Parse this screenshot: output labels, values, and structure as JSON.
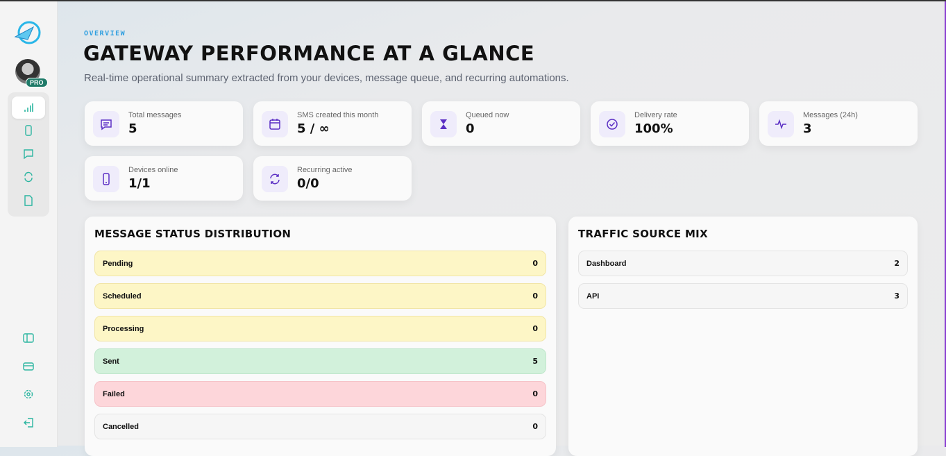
{
  "header": {
    "eyebrow": "OVERVIEW",
    "title": "GATEWAY PERFORMANCE AT A GLANCE",
    "subtitle": "Real-time operational summary extracted from your devices, message queue, and recurring automations."
  },
  "sidebar": {
    "badge": "PRO"
  },
  "stats": [
    {
      "label": "Total messages",
      "value": "5"
    },
    {
      "label": "SMS created this month",
      "value": "5 / ∞"
    },
    {
      "label": "Queued now",
      "value": "0"
    },
    {
      "label": "Delivery rate",
      "value": "100%"
    },
    {
      "label": "Messages (24h)",
      "value": "3"
    },
    {
      "label": "Devices online",
      "value": "1/1"
    },
    {
      "label": "Recurring active",
      "value": "0/0"
    }
  ],
  "panels": [
    {
      "title": "MESSAGE STATUS DISTRIBUTION",
      "rows": [
        {
          "label": "Pending",
          "value": "0"
        },
        {
          "label": "Scheduled",
          "value": "0"
        },
        {
          "label": "Processing",
          "value": "0"
        },
        {
          "label": "Sent",
          "value": "5"
        },
        {
          "label": "Failed",
          "value": "0"
        },
        {
          "label": "Cancelled",
          "value": "0"
        }
      ]
    },
    {
      "title": "TRAFFIC SOURCE MIX",
      "rows": [
        {
          "label": "Dashboard",
          "value": "2"
        },
        {
          "label": "API",
          "value": "3"
        }
      ]
    }
  ]
}
